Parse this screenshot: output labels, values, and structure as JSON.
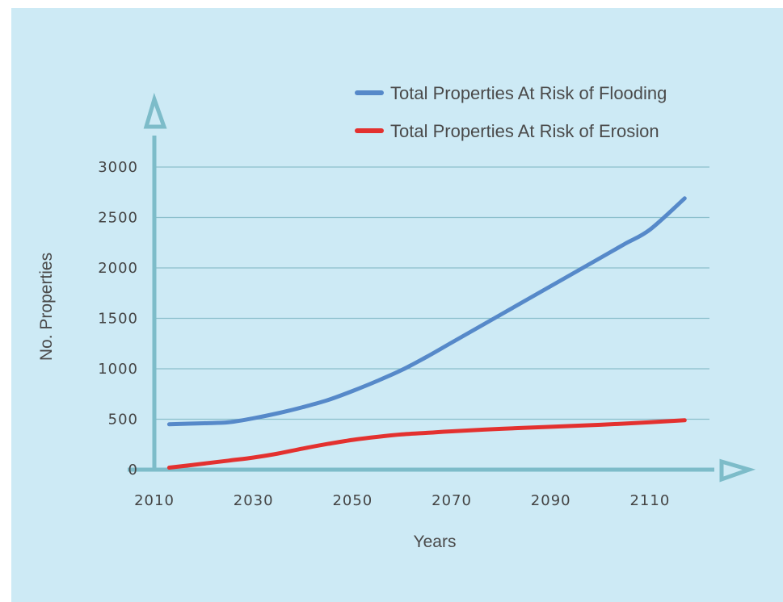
{
  "chart_data": {
    "type": "line",
    "xlabel": "Years",
    "ylabel": "No. Properties",
    "xlim": [
      2010,
      2122
    ],
    "ylim": [
      0,
      3000
    ],
    "x_ticks": [
      "2010",
      "2030",
      "2050",
      "2070",
      "2090",
      "2110"
    ],
    "y_ticks": [
      "0",
      "500",
      "1000",
      "1500",
      "2000",
      "2500",
      "3000"
    ],
    "grid": true,
    "legend_position": "top-right",
    "series": [
      {
        "name": "Total Properties At Risk of Flooding",
        "color": "#5689c9",
        "x": [
          2013,
          2020,
          2025,
          2030,
          2035,
          2040,
          2045,
          2050,
          2055,
          2060,
          2065,
          2070,
          2075,
          2080,
          2085,
          2090,
          2095,
          2100,
          2105,
          2110,
          2117
        ],
        "y": [
          450,
          460,
          470,
          510,
          560,
          620,
          690,
          780,
          880,
          990,
          1120,
          1260,
          1400,
          1540,
          1680,
          1820,
          1960,
          2100,
          2240,
          2380,
          2690
        ]
      },
      {
        "name": "Total Properties At Risk of Erosion",
        "color": "#e3312f",
        "x": [
          2013,
          2020,
          2025,
          2030,
          2035,
          2040,
          2045,
          2050,
          2055,
          2060,
          2065,
          2070,
          2080,
          2090,
          2100,
          2110,
          2117
        ],
        "y": [
          20,
          60,
          90,
          120,
          160,
          210,
          255,
          295,
          325,
          350,
          365,
          380,
          405,
          425,
          445,
          470,
          490
        ]
      }
    ]
  }
}
